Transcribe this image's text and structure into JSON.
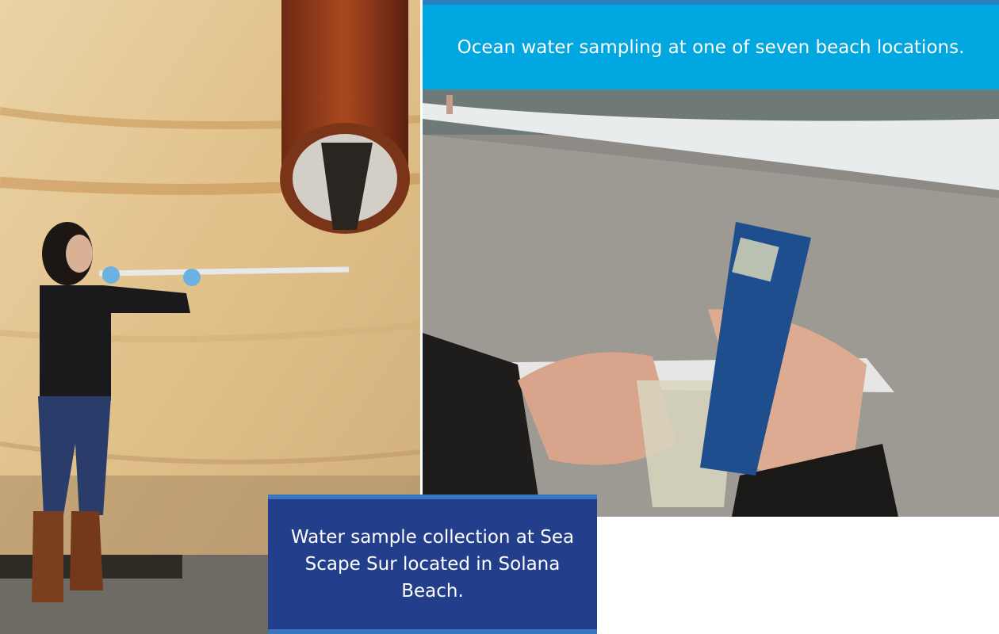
{
  "figures": [
    {
      "caption": "Ocean water sampling at one of seven beach locations."
    },
    {
      "caption": "Water sample collection at Sea Scape Sur located in Solana Beach."
    }
  ]
}
